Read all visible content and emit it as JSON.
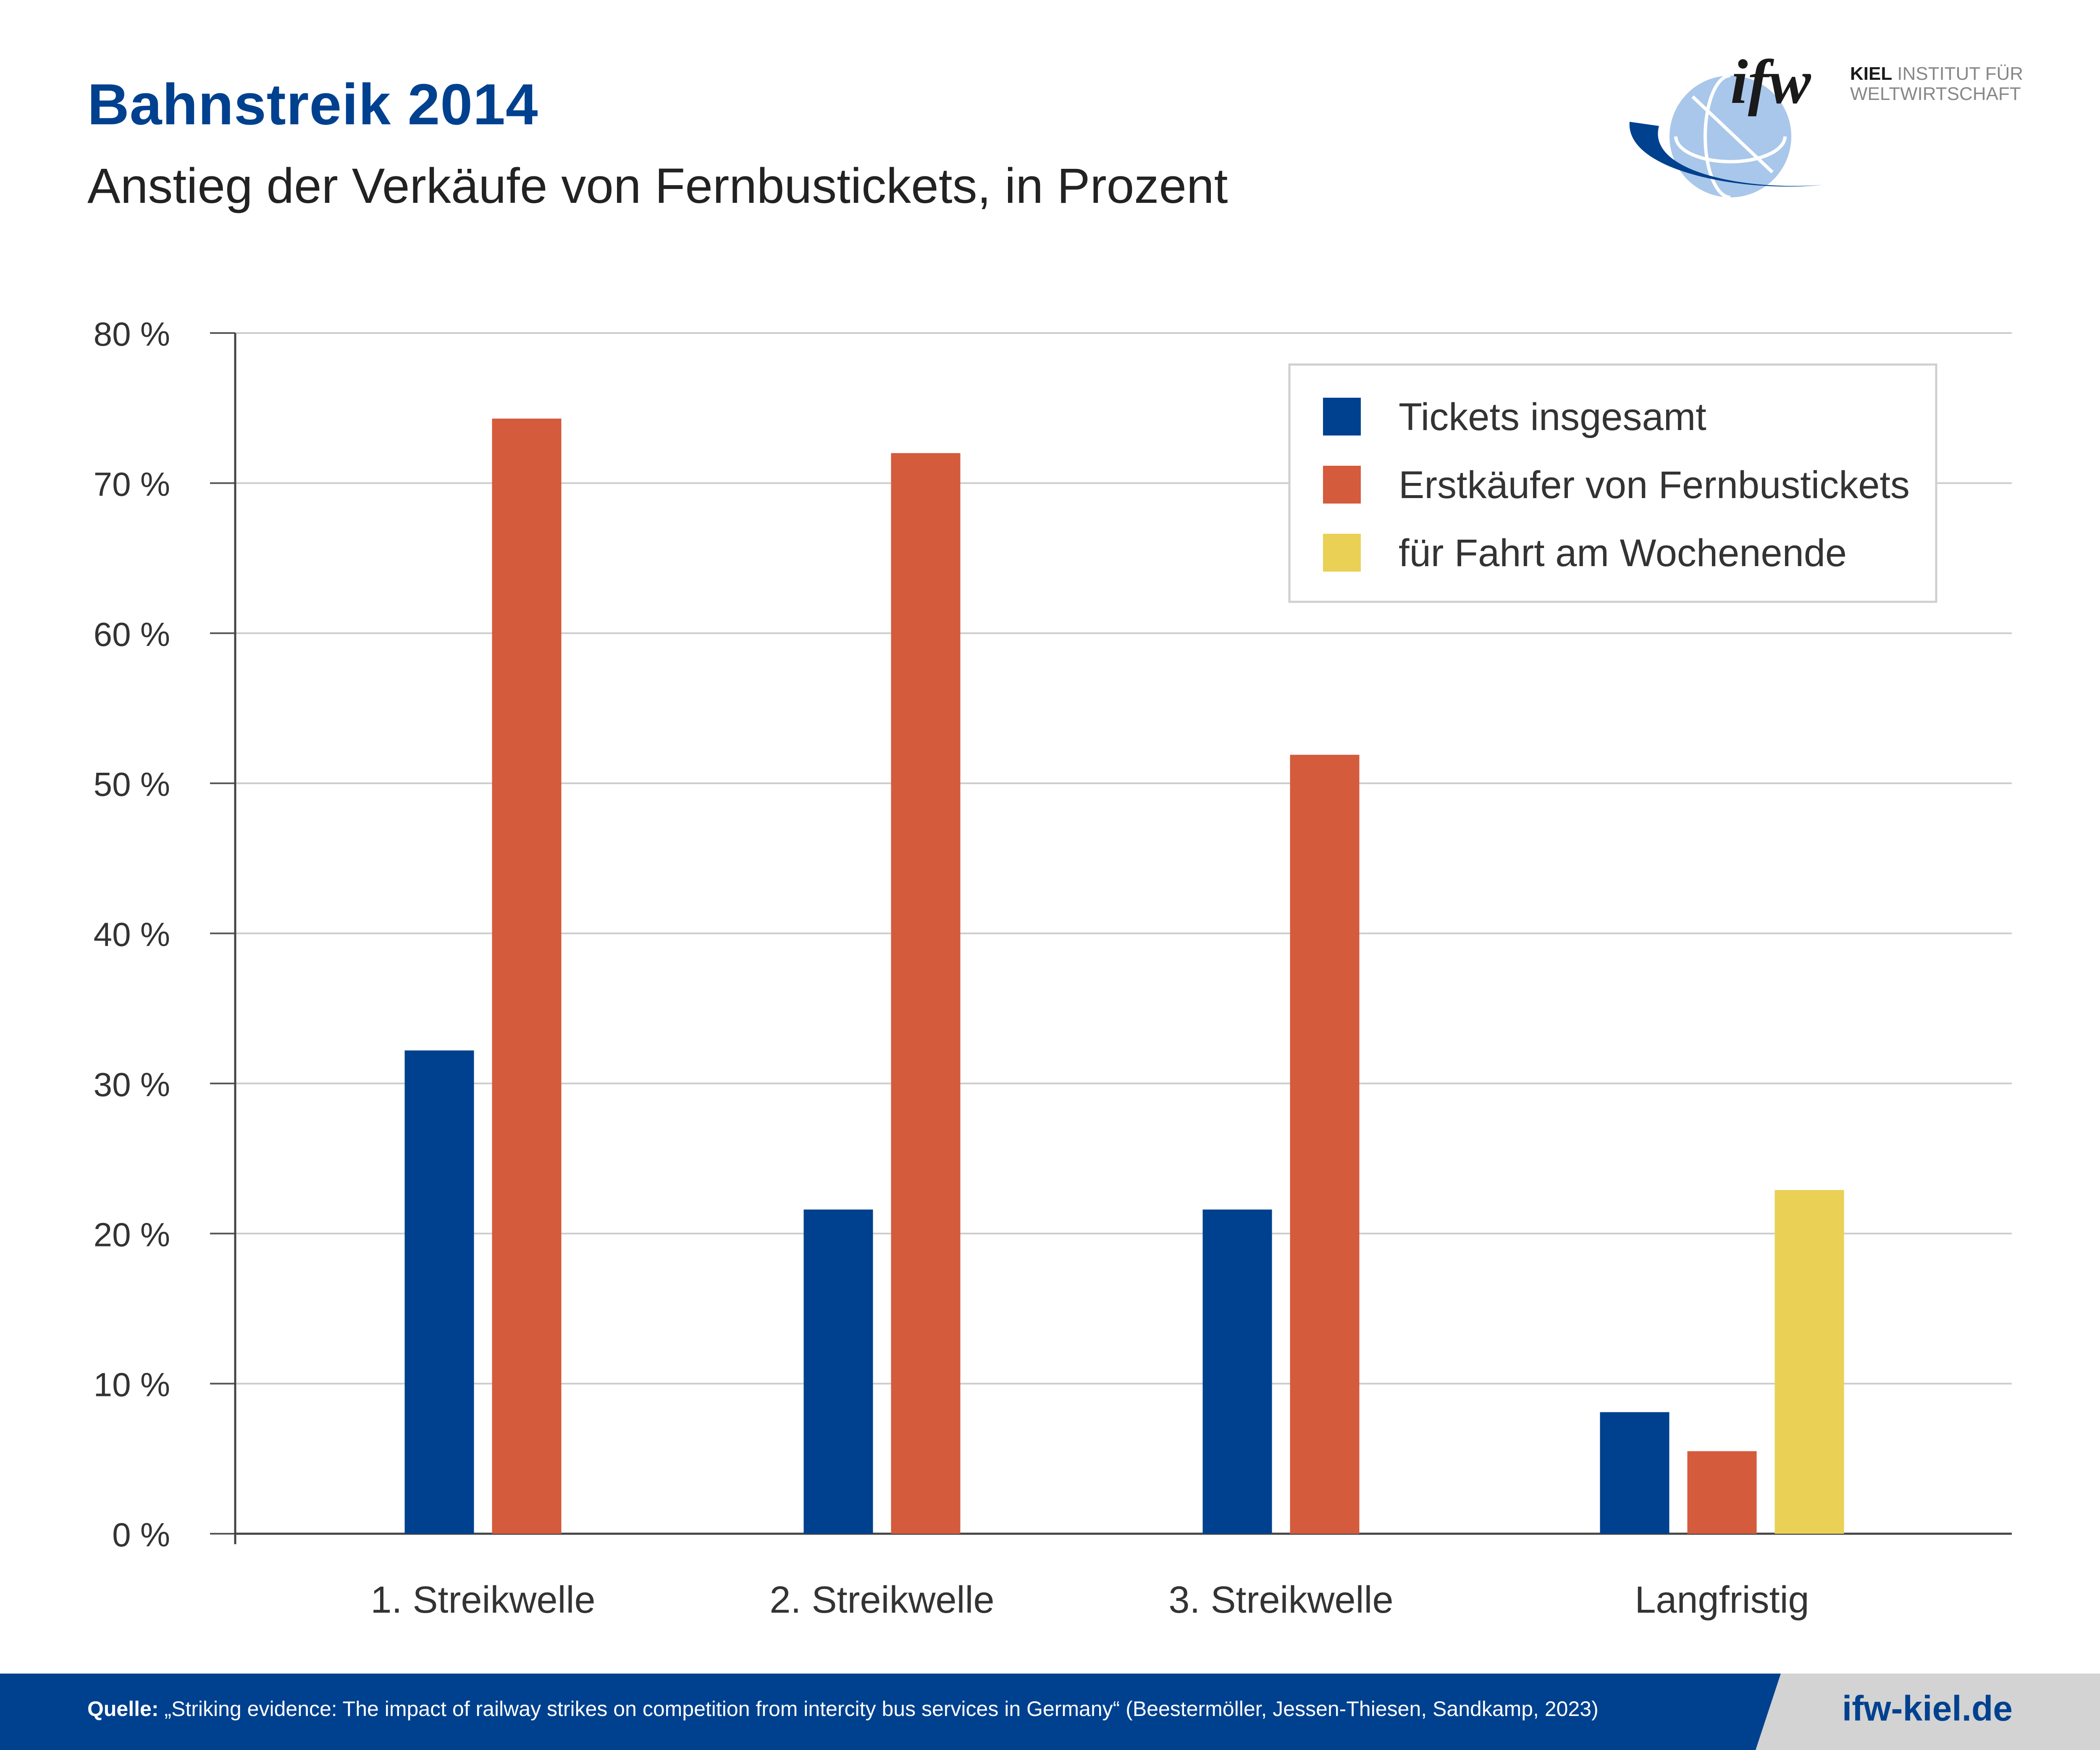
{
  "header": {
    "title": "Bahnstreik 2014",
    "subtitle": "Anstieg der Verkäufe von Fernbustickets, in Prozent"
  },
  "logo": {
    "wordmark": "ifw",
    "line1_bold": "KIEL",
    "line1_rest": "INSTITUT FÜR",
    "line2": "WELTWIRTSCHAFT",
    "icon": "globe-icon"
  },
  "footer": {
    "source_label": "Quelle:",
    "source_text": "„Striking evidence: The impact of railway strikes on competition from intercity bus services in Germany“ (Beestermöller, Jessen-Thiesen, Sandkamp, 2023)",
    "site": "ifw-kiel.de"
  },
  "colors": {
    "brand_blue": "#00418f",
    "orange": "#d45b3c",
    "yellow": "#ead055",
    "grid": "#cccccc"
  },
  "chart_data": {
    "type": "bar",
    "categories": [
      "1. Streikwelle",
      "2. Streikwelle",
      "3. Streikwelle",
      "Langfristig"
    ],
    "series": [
      {
        "name": "Tickets insgesamt",
        "color": "#00418f",
        "values": [
          32.2,
          21.6,
          21.6,
          8.1
        ]
      },
      {
        "name": "Erstkäufer von Fernbustickets",
        "color": "#d45b3c",
        "values": [
          74.3,
          72.0,
          51.9,
          5.5
        ]
      },
      {
        "name": "für Fahrt am Wochenende",
        "color": "#ead055",
        "values": [
          null,
          null,
          null,
          22.9
        ]
      }
    ],
    "ylim": [
      0,
      80
    ],
    "yticks": [
      0,
      10,
      20,
      30,
      40,
      50,
      60,
      70,
      80
    ],
    "ytick_labels": [
      "0 %",
      "10 %",
      "20 %",
      "30 %",
      "40 %",
      "50 %",
      "60 %",
      "70 %",
      "80 %"
    ],
    "grid": true,
    "legend_position": "top-right"
  }
}
